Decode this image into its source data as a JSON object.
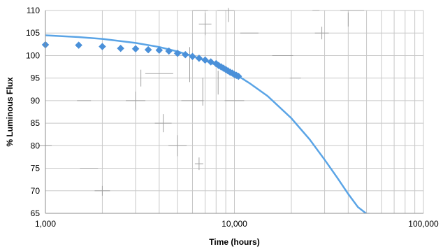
{
  "chart_data": {
    "type": "scatter",
    "xlabel": "Time (hours)",
    "ylabel": "% Luminous Flux",
    "x_scale": "log",
    "xlim": [
      1000,
      100000
    ],
    "ylim": [
      65,
      110
    ],
    "x_ticks": [
      1000,
      10000,
      100000
    ],
    "x_tick_labels": [
      "1,000",
      "10,000",
      "100,000"
    ],
    "y_ticks": [
      65,
      70,
      75,
      80,
      85,
      90,
      95,
      100,
      105,
      110
    ],
    "grid": true,
    "legend": "none",
    "series": [
      {
        "kind": "points",
        "marker": "diamond",
        "color": "#4a90d9",
        "x": [
          1000,
          1500,
          2000,
          2500,
          3000,
          3500,
          4000,
          4500,
          5000,
          5500,
          6000,
          6500,
          7000,
          7500,
          8000,
          8250,
          8500,
          8750,
          9000,
          9250,
          9500,
          9750,
          10000,
          10250,
          10500
        ],
        "y": [
          102.4,
          102.3,
          102.0,
          101.6,
          101.5,
          101.3,
          101.2,
          101.0,
          100.5,
          100.2,
          99.8,
          99.4,
          99.0,
          98.6,
          98.2,
          97.8,
          97.5,
          97.2,
          96.9,
          96.6,
          96.3,
          96.1,
          95.8,
          95.6,
          95.4
        ]
      },
      {
        "kind": "curve",
        "color": "#5aa4e6",
        "x": [
          1000,
          1500,
          2000,
          3000,
          4000,
          5000,
          6000,
          7000,
          8000,
          9000,
          10000,
          11000,
          12000,
          15000,
          20000,
          25000,
          30000,
          35000,
          40000,
          45000,
          50000,
          52000
        ],
        "y": [
          104.5,
          104.1,
          103.7,
          102.8,
          101.9,
          100.9,
          99.9,
          98.9,
          97.9,
          96.9,
          95.9,
          94.9,
          93.9,
          91.0,
          86.1,
          81.4,
          76.9,
          72.9,
          69.3,
          66.4,
          64.9,
          64.9
        ]
      }
    ],
    "colors": {
      "grid": "#c8c8c8",
      "axis": "#8c8c8c",
      "overlay": "#a0a0a0"
    }
  }
}
